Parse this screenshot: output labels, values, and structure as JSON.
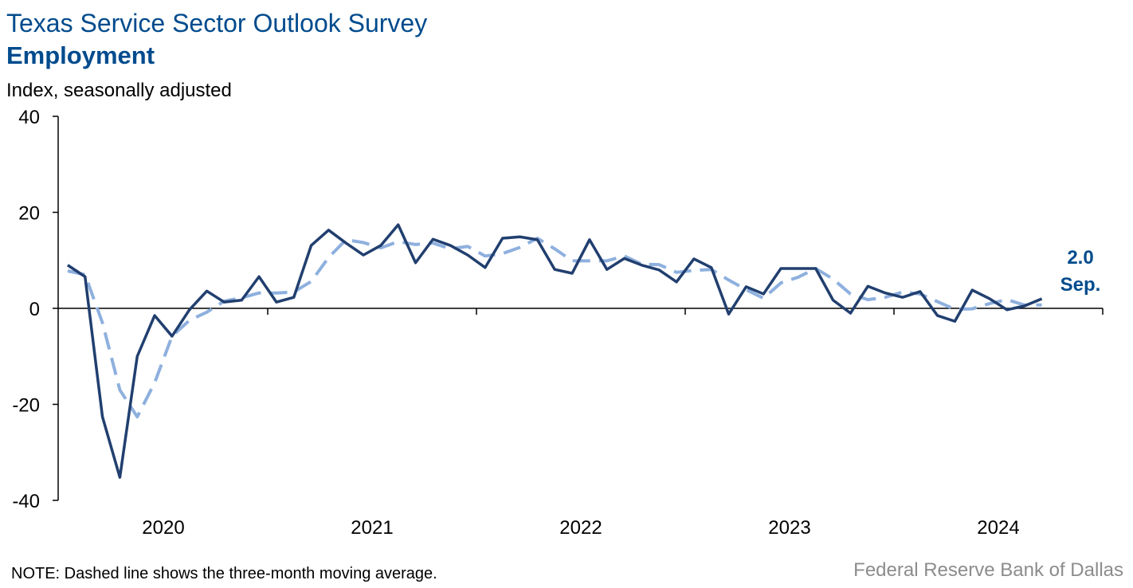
{
  "chart_data": {
    "type": "line",
    "title": "Texas Service Sector Outlook Survey",
    "subtitle": "Employment",
    "y_label": "Index, seasonally adjusted",
    "note": "NOTE: Dashed line shows the three-month moving average.",
    "source": "Federal Reserve Bank of Dallas",
    "annotations": [
      "2.0",
      "Sep."
    ],
    "categories": [
      null,
      null,
      null,
      null,
      null,
      "2020",
      null,
      null,
      null,
      null,
      null,
      null,
      null,
      null,
      null,
      null,
      null,
      "2021",
      null,
      null,
      null,
      null,
      null,
      null,
      null,
      null,
      null,
      null,
      null,
      "2022",
      null,
      null,
      null,
      null,
      null,
      null,
      null,
      null,
      null,
      null,
      null,
      "2023",
      null,
      null,
      null,
      null,
      null,
      null,
      null,
      null,
      null,
      null,
      null,
      "2024",
      null,
      null,
      null
    ],
    "series": [
      {
        "color": "#213f6f",
        "dashed": false,
        "values": [
          9.0,
          6.6,
          -22.6,
          -35.2,
          -10.0,
          -1.5,
          -5.8,
          -0.3,
          3.6,
          1.3,
          1.7,
          6.6,
          1.3,
          2.3,
          13.1,
          16.3,
          13.6,
          11.1,
          13.1,
          17.4,
          9.5,
          14.4,
          13.1,
          11.1,
          8.5,
          14.6,
          14.9,
          14.3,
          8.1,
          7.3,
          14.3,
          8.1,
          10.4,
          9.0,
          8.0,
          5.5,
          10.3,
          8.5,
          -1.2,
          4.5,
          3.0,
          8.3,
          8.3,
          8.3,
          1.7,
          -1.0,
          4.6,
          3.2,
          2.3,
          3.5,
          -1.5,
          -2.7,
          3.8,
          2.0,
          -0.3,
          0.5,
          2.0
        ]
      },
      {
        "color": "#8eb0de",
        "dashed": true,
        "values": [
          7.8,
          7.0,
          -3.0,
          -17.0,
          -22.6,
          -15.5,
          -5.8,
          -2.5,
          -0.8,
          1.5,
          2.2,
          3.2,
          3.2,
          3.4,
          5.6,
          10.6,
          14.3,
          13.7,
          12.6,
          13.9,
          13.3,
          13.6,
          12.4,
          12.9,
          10.9,
          11.4,
          12.7,
          14.6,
          12.4,
          9.9,
          9.9,
          9.9,
          10.9,
          9.2,
          9.1,
          7.5,
          7.9,
          8.1,
          5.9,
          3.9,
          2.1,
          5.3,
          6.5,
          8.3,
          6.1,
          3.0,
          1.8,
          2.3,
          3.4,
          3.0,
          1.4,
          -0.2,
          -0.1,
          1.0,
          1.8,
          0.7,
          0.7
        ]
      }
    ],
    "ylim": [
      -40,
      40
    ],
    "yticks": [
      -40,
      -20,
      0,
      20,
      40
    ]
  }
}
